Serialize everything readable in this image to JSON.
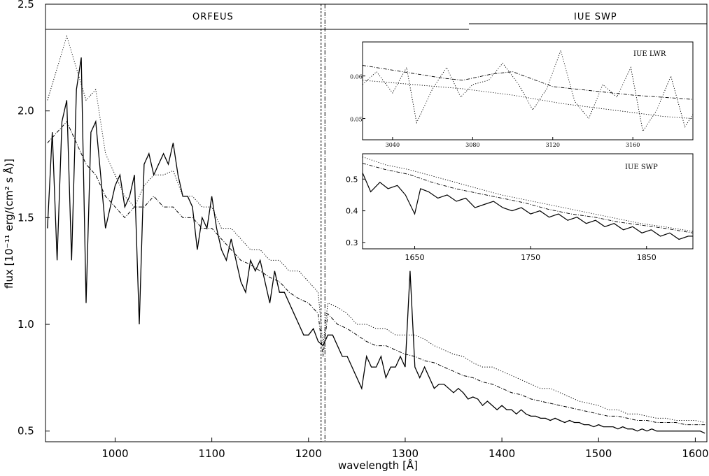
{
  "chart_data": {
    "type": "line",
    "xlabel": "wavelength [Å]",
    "ylabel": "flux [10⁻¹¹ erg/(cm² s Å)]",
    "xlim": [
      928,
      1612
    ],
    "ylim": [
      0.45,
      2.5
    ],
    "xticks": [
      1000,
      1100,
      1200,
      1300,
      1400,
      1500,
      1600
    ],
    "yticks": [
      0.5,
      1.0,
      1.5,
      2.0,
      2.5
    ],
    "xtick_labels": [
      "1000",
      "1100",
      "1200",
      "1300",
      "1400",
      "1500",
      "1600"
    ],
    "ytick_labels": [
      "0.5",
      "1.0",
      "1.5",
      "2.0",
      "2.5"
    ],
    "grid": false,
    "band_labels": [
      {
        "text": "ORFEUS",
        "x_range": [
          928,
          1215
        ]
      },
      {
        "text": "IUE SWP",
        "x_range": [
          1215,
          1612
        ]
      }
    ],
    "vertical_lines": [
      1213,
      1217
    ],
    "series": [
      {
        "style": "solid",
        "x": [
          930,
          935,
          940,
          945,
          950,
          955,
          960,
          965,
          970,
          975,
          980,
          985,
          990,
          995,
          1000,
          1005,
          1010,
          1015,
          1020,
          1025,
          1030,
          1035,
          1040,
          1045,
          1050,
          1055,
          1060,
          1065,
          1070,
          1075,
          1080,
          1085,
          1090,
          1095,
          1100,
          1105,
          1110,
          1115,
          1120,
          1125,
          1130,
          1135,
          1140,
          1145,
          1150,
          1155,
          1160,
          1165,
          1170,
          1175,
          1180,
          1185,
          1190,
          1195,
          1200,
          1205,
          1210,
          1215,
          1220,
          1225,
          1230,
          1235,
          1240,
          1245,
          1250,
          1255,
          1260,
          1265,
          1270,
          1275,
          1280,
          1285,
          1290,
          1295,
          1300,
          1305,
          1310,
          1315,
          1320,
          1325,
          1330,
          1335,
          1340,
          1345,
          1350,
          1355,
          1360,
          1365,
          1370,
          1375,
          1380,
          1385,
          1390,
          1395,
          1400,
          1405,
          1410,
          1415,
          1420,
          1425,
          1430,
          1435,
          1440,
          1445,
          1450,
          1455,
          1460,
          1465,
          1470,
          1475,
          1480,
          1485,
          1490,
          1495,
          1500,
          1505,
          1510,
          1515,
          1520,
          1525,
          1530,
          1535,
          1540,
          1545,
          1550,
          1555,
          1560,
          1565,
          1570,
          1575,
          1580,
          1585,
          1590,
          1595,
          1600,
          1605,
          1610
        ],
        "values": [
          1.45,
          1.9,
          1.3,
          1.95,
          2.05,
          1.3,
          2.1,
          2.25,
          1.1,
          1.9,
          1.95,
          1.7,
          1.45,
          1.55,
          1.65,
          1.7,
          1.55,
          1.6,
          1.7,
          1.0,
          1.75,
          1.8,
          1.7,
          1.75,
          1.8,
          1.75,
          1.85,
          1.7,
          1.6,
          1.6,
          1.55,
          1.35,
          1.5,
          1.45,
          1.6,
          1.45,
          1.35,
          1.3,
          1.4,
          1.3,
          1.2,
          1.15,
          1.3,
          1.25,
          1.3,
          1.2,
          1.1,
          1.25,
          1.15,
          1.15,
          1.1,
          1.05,
          1.0,
          0.95,
          0.95,
          0.98,
          0.92,
          0.9,
          0.95,
          0.95,
          0.9,
          0.85,
          0.85,
          0.8,
          0.75,
          0.7,
          0.85,
          0.8,
          0.8,
          0.85,
          0.75,
          0.8,
          0.8,
          0.85,
          0.8,
          1.25,
          0.8,
          0.75,
          0.8,
          0.75,
          0.7,
          0.72,
          0.72,
          0.7,
          0.68,
          0.7,
          0.68,
          0.65,
          0.66,
          0.65,
          0.62,
          0.64,
          0.62,
          0.6,
          0.62,
          0.6,
          0.6,
          0.58,
          0.6,
          0.58,
          0.57,
          0.57,
          0.56,
          0.56,
          0.55,
          0.56,
          0.55,
          0.54,
          0.55,
          0.54,
          0.54,
          0.53,
          0.53,
          0.52,
          0.53,
          0.52,
          0.52,
          0.52,
          0.51,
          0.52,
          0.51,
          0.51,
          0.5,
          0.51,
          0.5,
          0.51,
          0.5,
          0.5,
          0.5,
          0.5,
          0.5,
          0.5,
          0.5,
          0.5,
          0.5,
          0.5,
          0.49
        ]
      },
      {
        "style": "dotted",
        "x": [
          930,
          940,
          950,
          960,
          970,
          980,
          990,
          1000,
          1010,
          1020,
          1030,
          1040,
          1050,
          1060,
          1070,
          1080,
          1090,
          1100,
          1110,
          1120,
          1130,
          1140,
          1150,
          1160,
          1170,
          1180,
          1190,
          1200,
          1210,
          1215,
          1220,
          1230,
          1240,
          1250,
          1260,
          1270,
          1280,
          1290,
          1300,
          1310,
          1320,
          1330,
          1340,
          1350,
          1360,
          1370,
          1380,
          1390,
          1400,
          1410,
          1420,
          1430,
          1440,
          1450,
          1460,
          1470,
          1480,
          1490,
          1500,
          1510,
          1520,
          1530,
          1540,
          1550,
          1560,
          1570,
          1580,
          1590,
          1600,
          1610
        ],
        "values": [
          2.05,
          2.2,
          2.35,
          2.2,
          2.05,
          2.1,
          1.8,
          1.7,
          1.6,
          1.55,
          1.65,
          1.7,
          1.7,
          1.72,
          1.6,
          1.6,
          1.55,
          1.55,
          1.45,
          1.45,
          1.4,
          1.35,
          1.35,
          1.3,
          1.3,
          1.25,
          1.25,
          1.2,
          1.15,
          0.9,
          1.1,
          1.08,
          1.05,
          1.0,
          1.0,
          0.98,
          0.98,
          0.95,
          0.95,
          0.95,
          0.93,
          0.9,
          0.88,
          0.86,
          0.85,
          0.82,
          0.8,
          0.8,
          0.78,
          0.76,
          0.74,
          0.72,
          0.7,
          0.7,
          0.68,
          0.66,
          0.64,
          0.63,
          0.62,
          0.6,
          0.6,
          0.58,
          0.58,
          0.57,
          0.56,
          0.56,
          0.55,
          0.55,
          0.55,
          0.54
        ]
      },
      {
        "style": "dash-dot",
        "x": [
          930,
          940,
          950,
          960,
          970,
          980,
          990,
          1000,
          1010,
          1020,
          1030,
          1040,
          1050,
          1060,
          1070,
          1080,
          1090,
          1100,
          1110,
          1120,
          1130,
          1140,
          1150,
          1160,
          1170,
          1180,
          1190,
          1200,
          1210,
          1215,
          1220,
          1230,
          1240,
          1250,
          1260,
          1270,
          1280,
          1290,
          1300,
          1310,
          1320,
          1330,
          1340,
          1350,
          1360,
          1370,
          1380,
          1390,
          1400,
          1410,
          1420,
          1430,
          1440,
          1450,
          1460,
          1470,
          1480,
          1490,
          1500,
          1510,
          1520,
          1530,
          1540,
          1550,
          1560,
          1570,
          1580,
          1590,
          1600,
          1610
        ],
        "values": [
          1.85,
          1.9,
          1.95,
          1.85,
          1.75,
          1.7,
          1.6,
          1.55,
          1.5,
          1.55,
          1.55,
          1.6,
          1.55,
          1.55,
          1.5,
          1.5,
          1.45,
          1.45,
          1.4,
          1.35,
          1.3,
          1.28,
          1.25,
          1.22,
          1.2,
          1.15,
          1.12,
          1.1,
          1.05,
          0.85,
          1.05,
          1.0,
          0.98,
          0.95,
          0.92,
          0.9,
          0.9,
          0.88,
          0.86,
          0.85,
          0.83,
          0.82,
          0.8,
          0.78,
          0.76,
          0.75,
          0.73,
          0.72,
          0.7,
          0.68,
          0.67,
          0.65,
          0.64,
          0.63,
          0.62,
          0.61,
          0.6,
          0.59,
          0.58,
          0.57,
          0.57,
          0.56,
          0.55,
          0.55,
          0.54,
          0.54,
          0.54,
          0.53,
          0.53,
          0.53
        ]
      }
    ],
    "insets": [
      {
        "title": "IUE LWR",
        "xlim": [
          3025,
          3190
        ],
        "ylim": [
          0.045,
          0.068
        ],
        "xticks": [
          3040,
          3080,
          3120,
          3160
        ],
        "yticks": [
          0.05,
          0.06
        ],
        "xtick_labels": [
          "3040",
          "3080",
          "3120",
          "3160"
        ],
        "ytick_labels": [
          "0.05",
          "0.06"
        ],
        "series": [
          {
            "style": "dotted",
            "x": [
              3025,
              3032,
              3040,
              3047,
              3052,
              3060,
              3067,
              3074,
              3080,
              3088,
              3095,
              3103,
              3110,
              3117,
              3124,
              3131,
              3138,
              3145,
              3152,
              3159,
              3165,
              3172,
              3179,
              3186,
              3190
            ],
            "values": [
              0.058,
              0.061,
              0.056,
              0.062,
              0.049,
              0.057,
              0.062,
              0.055,
              0.058,
              0.059,
              0.063,
              0.058,
              0.052,
              0.057,
              0.066,
              0.054,
              0.05,
              0.058,
              0.055,
              0.062,
              0.047,
              0.052,
              0.06,
              0.048,
              0.051
            ]
          },
          {
            "style": "dash-dot",
            "x": [
              3025,
              3045,
              3065,
              3075,
              3090,
              3100,
              3120,
              3140,
              3160,
              3190
            ],
            "values": [
              0.0625,
              0.061,
              0.0595,
              0.059,
              0.0605,
              0.061,
              0.0575,
              0.0565,
              0.0555,
              0.0545
            ]
          },
          {
            "style": "dotted",
            "x": [
              3025,
              3050,
              3075,
              3100,
              3125,
              3150,
              3175,
              3190
            ],
            "values": [
              0.059,
              0.058,
              0.057,
              0.0555,
              0.0535,
              0.052,
              0.0505,
              0.05
            ]
          }
        ]
      },
      {
        "title": "IUE SWP",
        "xlim": [
          1605,
          1890
        ],
        "ylim": [
          0.28,
          0.58
        ],
        "xticks": [
          1650,
          1750,
          1850
        ],
        "yticks": [
          0.3,
          0.4,
          0.5
        ],
        "xtick_labels": [
          "1650",
          "1750",
          "1850"
        ],
        "ytick_labels": [
          "0.3",
          "0.4",
          "0.5"
        ],
        "series": [
          {
            "style": "solid",
            "x": [
              1605,
              1612,
              1620,
              1627,
              1635,
              1642,
              1650,
              1655,
              1662,
              1670,
              1678,
              1686,
              1694,
              1702,
              1710,
              1718,
              1726,
              1734,
              1742,
              1750,
              1758,
              1766,
              1774,
              1782,
              1790,
              1798,
              1806,
              1814,
              1822,
              1830,
              1838,
              1846,
              1854,
              1862,
              1870,
              1878,
              1886,
              1890
            ],
            "values": [
              0.52,
              0.46,
              0.49,
              0.47,
              0.48,
              0.45,
              0.39,
              0.47,
              0.46,
              0.44,
              0.45,
              0.43,
              0.44,
              0.41,
              0.42,
              0.43,
              0.41,
              0.4,
              0.41,
              0.39,
              0.4,
              0.38,
              0.39,
              0.37,
              0.38,
              0.36,
              0.37,
              0.35,
              0.36,
              0.34,
              0.35,
              0.33,
              0.34,
              0.32,
              0.33,
              0.31,
              0.32,
              0.32
            ]
          },
          {
            "style": "dotted",
            "x": [
              1605,
              1625,
              1645,
              1665,
              1685,
              1705,
              1725,
              1745,
              1765,
              1785,
              1805,
              1825,
              1845,
              1865,
              1890
            ],
            "values": [
              0.57,
              0.545,
              0.53,
              0.51,
              0.49,
              0.47,
              0.45,
              0.435,
              0.42,
              0.405,
              0.39,
              0.375,
              0.36,
              0.35,
              0.335
            ]
          },
          {
            "style": "dash-dot",
            "x": [
              1605,
              1625,
              1645,
              1665,
              1685,
              1705,
              1725,
              1745,
              1765,
              1785,
              1805,
              1825,
              1845,
              1865,
              1890
            ],
            "values": [
              0.55,
              0.53,
              0.515,
              0.49,
              0.47,
              0.455,
              0.44,
              0.425,
              0.405,
              0.39,
              0.38,
              0.365,
              0.355,
              0.345,
              0.33
            ]
          }
        ]
      }
    ]
  }
}
